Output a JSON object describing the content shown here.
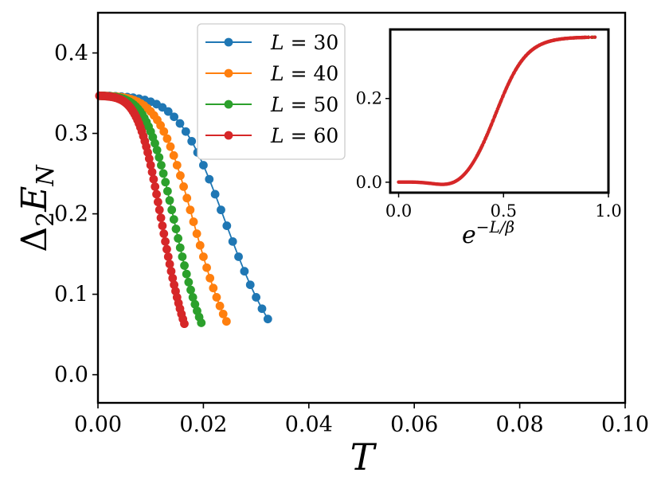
{
  "chart_data": [
    {
      "type": "line",
      "xlabel": "T",
      "ylabel": "Δ₂E_N",
      "ylabel_main": "Δ",
      "ylabel_sub1": "2",
      "ylabel_E": "E",
      "ylabel_sub2": "N",
      "xlim": [
        0.0,
        0.1
      ],
      "ylim": [
        -0.035,
        0.45
      ],
      "xticks": [
        0.0,
        0.02,
        0.04,
        0.06,
        0.08,
        0.1
      ],
      "xtick_labels": [
        "0.00",
        "0.02",
        "0.04",
        "0.06",
        "0.08",
        "0.10"
      ],
      "yticks": [
        0.0,
        0.1,
        0.2,
        0.3,
        0.4
      ],
      "ytick_labels": [
        "0.0",
        "0.1",
        "0.2",
        "0.3",
        "0.4"
      ],
      "legend_position": "upper-center",
      "amplitude": 0.347,
      "dip_depth": 0.018,
      "series": [
        {
          "name": "L = 30",
          "legend_var": "L",
          "legend_val": "= 30",
          "L": 30,
          "color": "#1f77b4"
        },
        {
          "name": "L = 40",
          "legend_var": "L",
          "legend_val": "= 40",
          "L": 40,
          "color": "#ff7f0e"
        },
        {
          "name": "L = 50",
          "legend_var": "L",
          "legend_val": "= 50",
          "L": 50,
          "color": "#2ca02c"
        },
        {
          "name": "L = 60",
          "legend_var": "L",
          "legend_val": "= 60",
          "L": 60,
          "color": "#d62728"
        }
      ]
    },
    {
      "type": "scatter",
      "inset": true,
      "position": "upper-right",
      "xlabel": "e^{-L/β}",
      "xlabel_base": "e",
      "xlabel_exp": "−L/β",
      "xlim": [
        -0.04,
        1.0
      ],
      "ylim": [
        -0.025,
        0.365
      ],
      "xticks": [
        0.0,
        0.5,
        1.0
      ],
      "xtick_labels": [
        "0.0",
        "0.5",
        "1.0"
      ],
      "yticks": [
        0.0,
        0.2
      ],
      "ytick_labels": [
        "0.0",
        "0.2"
      ],
      "x_range": [
        0.0,
        0.94
      ],
      "point_color": "#d62728"
    }
  ]
}
